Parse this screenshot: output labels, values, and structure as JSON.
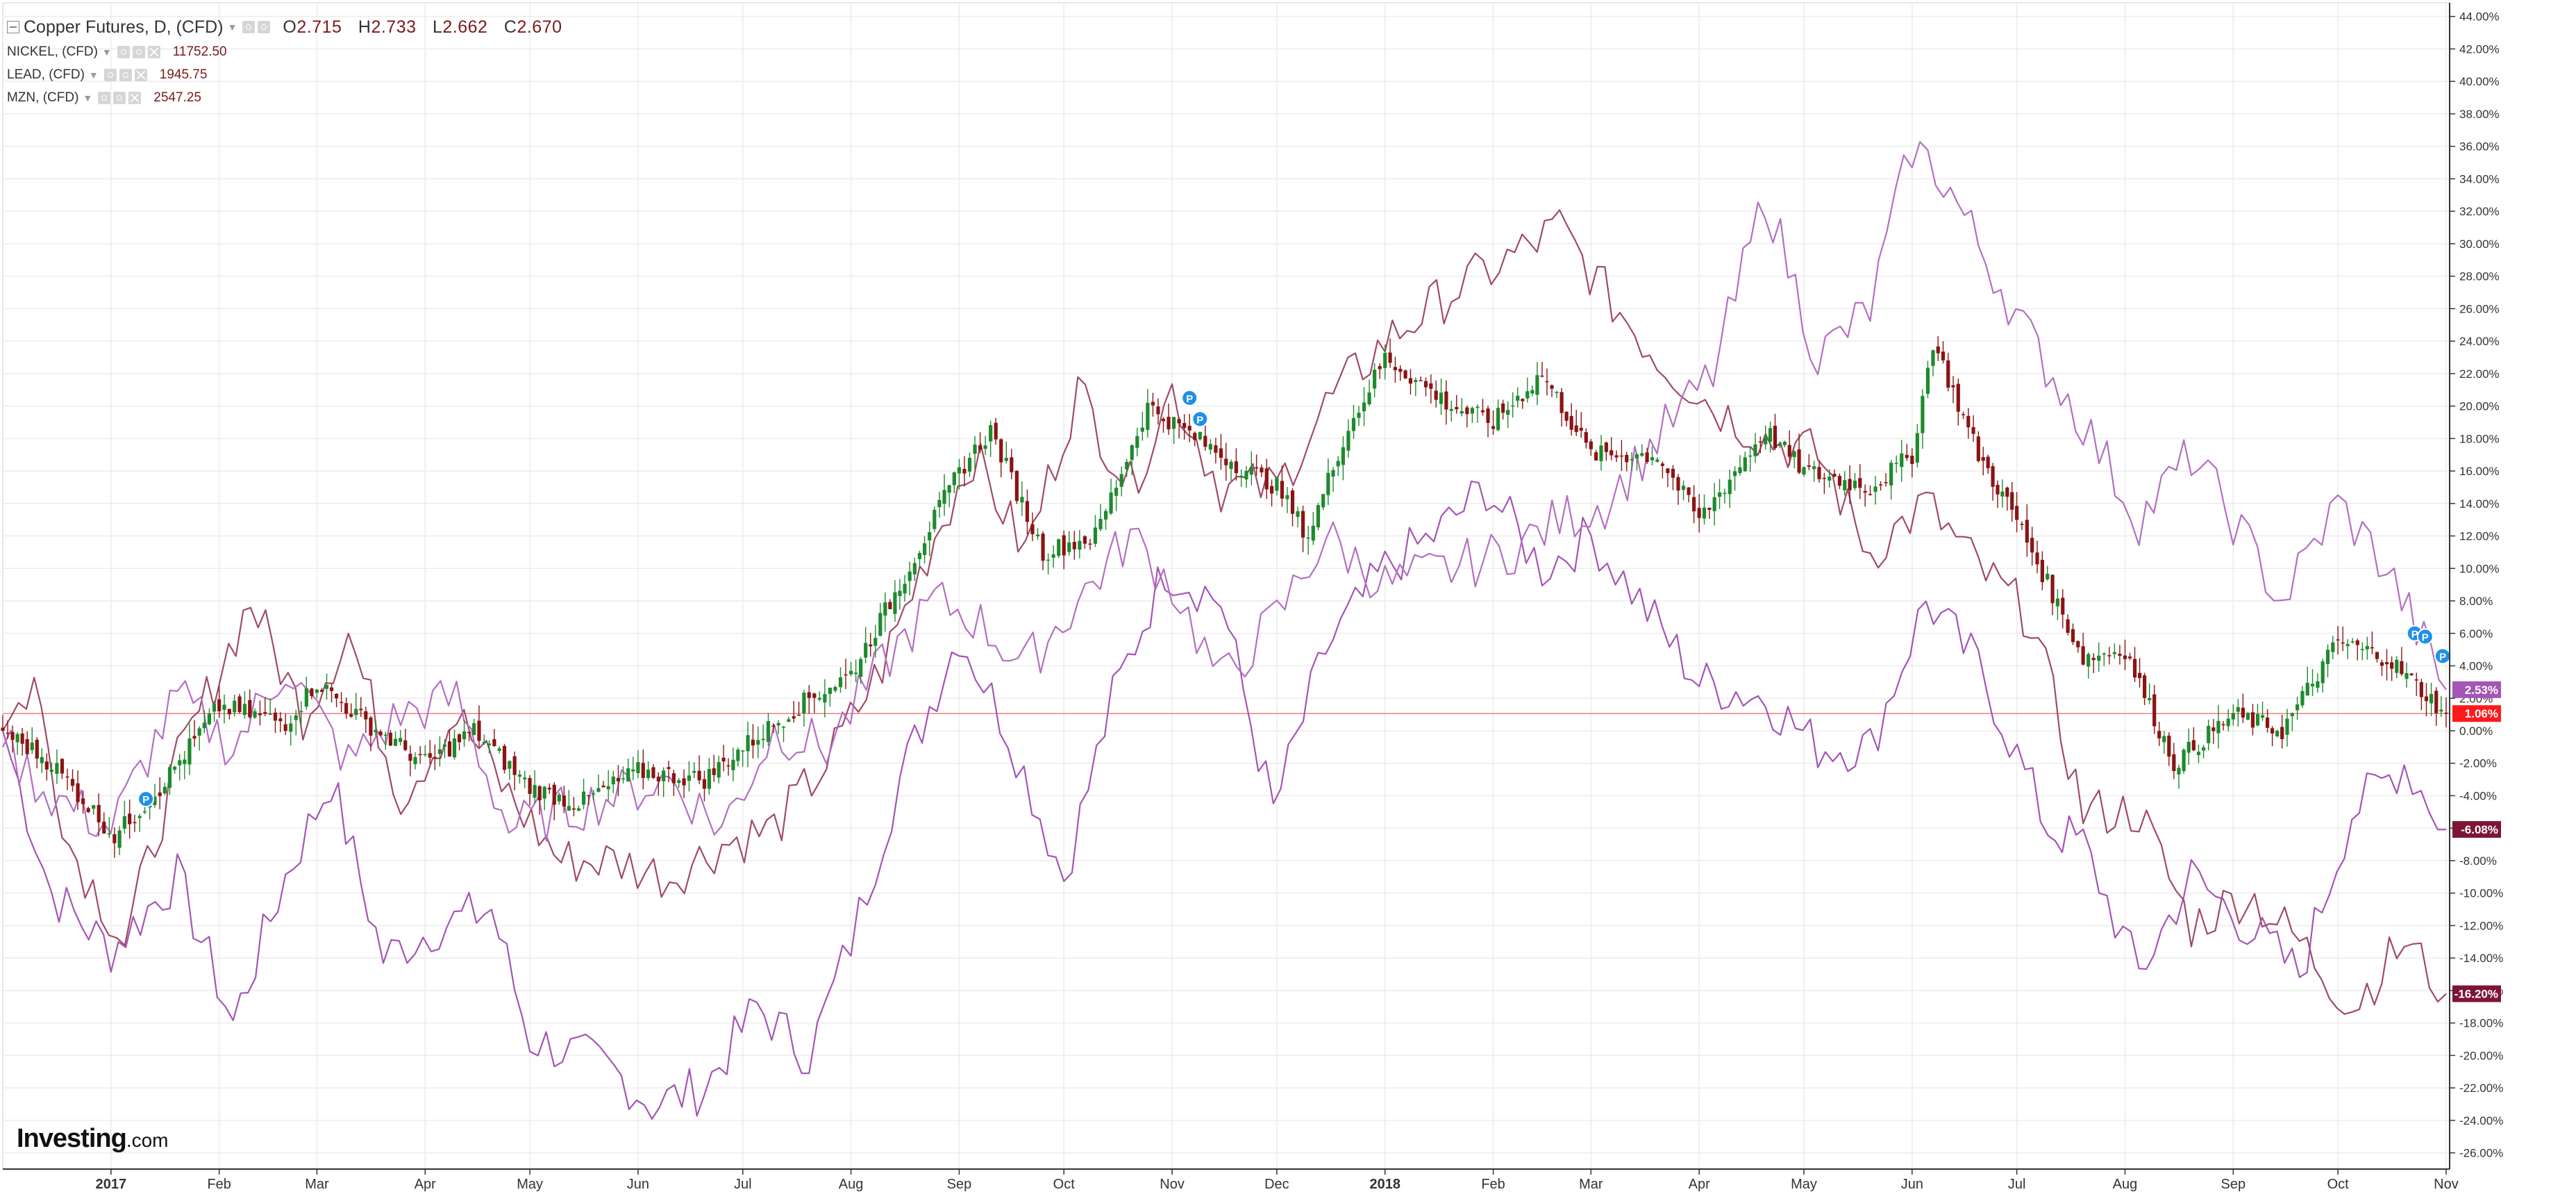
{
  "legend": {
    "main": {
      "symbol": "Copper Futures, D, (CFD)",
      "o_label": "O",
      "o": "2.715",
      "h_label": "H",
      "h": "2.733",
      "l_label": "L",
      "l": "2.662",
      "c_label": "C",
      "c": "2.670"
    },
    "overlays": [
      {
        "symbol": "NICKEL, (CFD)",
        "value": "11752.50"
      },
      {
        "symbol": "LEAD, (CFD)",
        "value": "1945.75"
      },
      {
        "symbol": "MZN, (CFD)",
        "value": "2547.25"
      }
    ]
  },
  "logo": {
    "name": "Investing",
    "suffix": ".com"
  },
  "colors": {
    "up": "#1e8a2e",
    "down": "#8a1414",
    "nickel": "#a455b5",
    "lead": "#a04a67",
    "mzn": "#b36fc2",
    "zero_line": "#f08080",
    "grid": "#ececec",
    "axis": "#333333"
  },
  "chart_data": {
    "type": "line",
    "title": "Copper Futures, D, (CFD)",
    "y_unit": "percent change",
    "ylim": [
      -27,
      44.5
    ],
    "yticks": [
      44,
      42,
      40,
      38,
      36,
      34,
      32,
      30,
      28,
      26,
      24,
      22,
      20,
      18,
      16,
      14,
      12,
      10,
      8,
      6,
      4,
      2,
      0,
      -2,
      -4,
      -6,
      -8,
      -10,
      -12,
      -14,
      -16,
      -18,
      -20,
      -22,
      -24,
      -26
    ],
    "x_start": "2016-12-01",
    "x_end": "2018-11-02",
    "x_ticks": [
      {
        "date": "2017-01-01",
        "label": "2017"
      },
      {
        "date": "2017-02-01",
        "label": "Feb"
      },
      {
        "date": "2017-03-01",
        "label": "Mar"
      },
      {
        "date": "2017-04-01",
        "label": "Apr"
      },
      {
        "date": "2017-05-01",
        "label": "May"
      },
      {
        "date": "2017-06-01",
        "label": "Jun"
      },
      {
        "date": "2017-07-01",
        "label": "Jul"
      },
      {
        "date": "2017-08-01",
        "label": "Aug"
      },
      {
        "date": "2017-09-01",
        "label": "Sep"
      },
      {
        "date": "2017-10-01",
        "label": "Oct"
      },
      {
        "date": "2017-11-01",
        "label": "Nov"
      },
      {
        "date": "2017-12-01",
        "label": "Dec"
      },
      {
        "date": "2018-01-01",
        "label": "2018"
      },
      {
        "date": "2018-02-01",
        "label": "Feb"
      },
      {
        "date": "2018-03-01",
        "label": "Mar"
      },
      {
        "date": "2018-04-01",
        "label": "Apr"
      },
      {
        "date": "2018-05-01",
        "label": "May"
      },
      {
        "date": "2018-06-01",
        "label": "Jun"
      },
      {
        "date": "2018-07-01",
        "label": "Jul"
      },
      {
        "date": "2018-08-01",
        "label": "Aug"
      },
      {
        "date": "2018-09-01",
        "label": "Sep"
      },
      {
        "date": "2018-10-01",
        "label": "Oct"
      },
      {
        "date": "2018-11-01",
        "label": "Nov"
      }
    ],
    "zero_reference": 1.06,
    "last_value_badges": [
      {
        "text": "2.53%",
        "value": 2.53,
        "color": "#a455b5"
      },
      {
        "text": "1.06%",
        "value": 1.06,
        "color": "#ff1a1a"
      },
      {
        "text": "-6.08%",
        "value": -6.08,
        "color": "#7d1535"
      },
      {
        "text": "-16.20%",
        "value": -16.2,
        "color": "#7d1535"
      }
    ],
    "event_markers": [
      {
        "date": "2017-01-11",
        "value": -4.2,
        "label": "P"
      },
      {
        "date": "2017-11-06",
        "value": 20.5,
        "label": "P"
      },
      {
        "date": "2017-11-09",
        "value": 19.2,
        "label": "P"
      },
      {
        "date": "2018-10-23",
        "value": 6.0,
        "label": "P"
      },
      {
        "date": "2018-10-26",
        "value": 5.8,
        "label": "P"
      },
      {
        "date": "2018-10-31",
        "value": 4.6,
        "label": "P"
      }
    ],
    "candles": [
      {
        "x": "2016-12-01",
        "v": 0.0
      },
      {
        "x": "2016-12-15",
        "v": -2.0
      },
      {
        "x": "2017-01-02",
        "v": -6.5
      },
      {
        "x": "2017-01-15",
        "v": -3.5
      },
      {
        "x": "2017-02-01",
        "v": 1.5
      },
      {
        "x": "2017-02-20",
        "v": 0.5
      },
      {
        "x": "2017-03-01",
        "v": 3.0
      },
      {
        "x": "2017-03-15",
        "v": 0.5
      },
      {
        "x": "2017-04-01",
        "v": -2.0
      },
      {
        "x": "2017-04-15",
        "v": 0.0
      },
      {
        "x": "2017-05-01",
        "v": -3.5
      },
      {
        "x": "2017-05-15",
        "v": -4.5
      },
      {
        "x": "2017-06-01",
        "v": -2.5
      },
      {
        "x": "2017-06-20",
        "v": -3.0
      },
      {
        "x": "2017-07-01",
        "v": -1.0
      },
      {
        "x": "2017-07-20",
        "v": 2.0
      },
      {
        "x": "2017-08-01",
        "v": 3.5
      },
      {
        "x": "2017-08-15",
        "v": 9.0
      },
      {
        "x": "2017-09-01",
        "v": 16.0
      },
      {
        "x": "2017-09-10",
        "v": 18.5
      },
      {
        "x": "2017-09-25",
        "v": 11.0
      },
      {
        "x": "2017-10-10",
        "v": 12.0
      },
      {
        "x": "2017-10-25",
        "v": 20.0
      },
      {
        "x": "2017-11-15",
        "v": 17.0
      },
      {
        "x": "2017-12-01",
        "v": 15.0
      },
      {
        "x": "2017-12-10",
        "v": 12.0
      },
      {
        "x": "2017-12-20",
        "v": 18.0
      },
      {
        "x": "2018-01-01",
        "v": 23.0
      },
      {
        "x": "2018-01-20",
        "v": 20.0
      },
      {
        "x": "2018-02-01",
        "v": 19.0
      },
      {
        "x": "2018-02-15",
        "v": 22.0
      },
      {
        "x": "2018-03-01",
        "v": 17.0
      },
      {
        "x": "2018-03-20",
        "v": 17.0
      },
      {
        "x": "2018-04-01",
        "v": 13.0
      },
      {
        "x": "2018-04-20",
        "v": 18.5
      },
      {
        "x": "2018-05-01",
        "v": 16.0
      },
      {
        "x": "2018-05-20",
        "v": 15.0
      },
      {
        "x": "2018-06-01",
        "v": 17.0
      },
      {
        "x": "2018-06-07",
        "v": 24.0
      },
      {
        "x": "2018-06-20",
        "v": 17.0
      },
      {
        "x": "2018-07-01",
        "v": 13.0
      },
      {
        "x": "2018-07-20",
        "v": 4.5
      },
      {
        "x": "2018-08-01",
        "v": 5.0
      },
      {
        "x": "2018-08-15",
        "v": -2.0
      },
      {
        "x": "2018-09-01",
        "v": 1.0
      },
      {
        "x": "2018-09-15",
        "v": 0.0
      },
      {
        "x": "2018-10-01",
        "v": 5.5
      },
      {
        "x": "2018-10-15",
        "v": 4.5
      },
      {
        "x": "2018-11-01",
        "v": 1.06
      }
    ],
    "series": [
      {
        "name": "NICKEL, (CFD)",
        "color": "#a455b5",
        "points": [
          {
            "x": "2016-12-01",
            "y": 0
          },
          {
            "x": "2016-12-15",
            "y": -10
          },
          {
            "x": "2017-01-01",
            "y": -13.5
          },
          {
            "x": "2017-01-20",
            "y": -9
          },
          {
            "x": "2017-02-05",
            "y": -18
          },
          {
            "x": "2017-02-20",
            "y": -9
          },
          {
            "x": "2017-03-05",
            "y": -3
          },
          {
            "x": "2017-03-20",
            "y": -14
          },
          {
            "x": "2017-04-05",
            "y": -12
          },
          {
            "x": "2017-04-20",
            "y": -11
          },
          {
            "x": "2017-05-01",
            "y": -19
          },
          {
            "x": "2017-05-15",
            "y": -20
          },
          {
            "x": "2017-05-25",
            "y": -21
          },
          {
            "x": "2017-06-05",
            "y": -23
          },
          {
            "x": "2017-06-20",
            "y": -22
          },
          {
            "x": "2017-07-05",
            "y": -17
          },
          {
            "x": "2017-07-20",
            "y": -20
          },
          {
            "x": "2017-08-01",
            "y": -13
          },
          {
            "x": "2017-08-15",
            "y": -3
          },
          {
            "x": "2017-09-01",
            "y": 6
          },
          {
            "x": "2017-09-15",
            "y": 0
          },
          {
            "x": "2017-10-01",
            "y": -9
          },
          {
            "x": "2017-10-15",
            "y": 2
          },
          {
            "x": "2017-10-30",
            "y": 10
          },
          {
            "x": "2017-11-15",
            "y": 8
          },
          {
            "x": "2017-11-30",
            "y": -5
          },
          {
            "x": "2017-12-15",
            "y": 5
          },
          {
            "x": "2018-01-01",
            "y": 10
          },
          {
            "x": "2018-01-15",
            "y": 12
          },
          {
            "x": "2018-01-30",
            "y": 15
          },
          {
            "x": "2018-02-15",
            "y": 10
          },
          {
            "x": "2018-03-01",
            "y": 12
          },
          {
            "x": "2018-03-15",
            "y": 8
          },
          {
            "x": "2018-04-01",
            "y": 3
          },
          {
            "x": "2018-04-20",
            "y": 2
          },
          {
            "x": "2018-05-05",
            "y": -1
          },
          {
            "x": "2018-05-20",
            "y": -1
          },
          {
            "x": "2018-06-05",
            "y": 8
          },
          {
            "x": "2018-06-20",
            "y": 4
          },
          {
            "x": "2018-07-10",
            "y": -6
          },
          {
            "x": "2018-07-20",
            "y": -7
          },
          {
            "x": "2018-08-05",
            "y": -15
          },
          {
            "x": "2018-08-20",
            "y": -9
          },
          {
            "x": "2018-09-05",
            "y": -12
          },
          {
            "x": "2018-09-20",
            "y": -15
          },
          {
            "x": "2018-10-05",
            "y": -5
          },
          {
            "x": "2018-10-20",
            "y": -2
          },
          {
            "x": "2018-11-01",
            "y": -6.08
          }
        ]
      },
      {
        "name": "LEAD, (CFD)",
        "color": "#a04a67",
        "points": [
          {
            "x": "2016-12-01",
            "y": 0
          },
          {
            "x": "2016-12-10",
            "y": 3
          },
          {
            "x": "2016-12-20",
            "y": -7
          },
          {
            "x": "2017-01-05",
            "y": -13
          },
          {
            "x": "2017-01-20",
            "y": -2
          },
          {
            "x": "2017-02-10",
            "y": 8
          },
          {
            "x": "2017-02-25",
            "y": 1
          },
          {
            "x": "2017-03-10",
            "y": 6
          },
          {
            "x": "2017-03-25",
            "y": -4
          },
          {
            "x": "2017-04-10",
            "y": 1
          },
          {
            "x": "2017-04-25",
            "y": -4
          },
          {
            "x": "2017-05-10",
            "y": -8
          },
          {
            "x": "2017-05-25",
            "y": -8
          },
          {
            "x": "2017-06-10",
            "y": -9
          },
          {
            "x": "2017-06-25",
            "y": -7
          },
          {
            "x": "2017-07-10",
            "y": -6
          },
          {
            "x": "2017-07-25",
            "y": -2
          },
          {
            "x": "2017-08-10",
            "y": 4
          },
          {
            "x": "2017-08-25",
            "y": 12
          },
          {
            "x": "2017-09-05",
            "y": 17
          },
          {
            "x": "2017-09-20",
            "y": 11
          },
          {
            "x": "2017-10-05",
            "y": 21
          },
          {
            "x": "2017-10-20",
            "y": 15
          },
          {
            "x": "2017-11-01",
            "y": 21
          },
          {
            "x": "2017-11-15",
            "y": 15
          },
          {
            "x": "2017-12-01",
            "y": 15
          },
          {
            "x": "2017-12-15",
            "y": 20
          },
          {
            "x": "2018-01-01",
            "y": 24
          },
          {
            "x": "2018-01-20",
            "y": 27
          },
          {
            "x": "2018-02-05",
            "y": 29
          },
          {
            "x": "2018-02-20",
            "y": 31
          },
          {
            "x": "2018-03-05",
            "y": 27
          },
          {
            "x": "2018-03-20",
            "y": 23
          },
          {
            "x": "2018-04-05",
            "y": 20
          },
          {
            "x": "2018-04-20",
            "y": 18
          },
          {
            "x": "2018-05-05",
            "y": 17
          },
          {
            "x": "2018-05-20",
            "y": 11
          },
          {
            "x": "2018-06-05",
            "y": 14
          },
          {
            "x": "2018-06-20",
            "y": 10
          },
          {
            "x": "2018-07-05",
            "y": 7
          },
          {
            "x": "2018-07-20",
            "y": -5
          },
          {
            "x": "2018-08-05",
            "y": -5
          },
          {
            "x": "2018-08-20",
            "y": -12
          },
          {
            "x": "2018-09-05",
            "y": -10
          },
          {
            "x": "2018-09-20",
            "y": -13
          },
          {
            "x": "2018-10-05",
            "y": -17
          },
          {
            "x": "2018-10-20",
            "y": -13
          },
          {
            "x": "2018-11-01",
            "y": -16.2
          }
        ]
      },
      {
        "name": "MZN, (CFD)",
        "color": "#b36fc2",
        "points": [
          {
            "x": "2016-12-01",
            "y": -1
          },
          {
            "x": "2016-12-15",
            "y": -4
          },
          {
            "x": "2017-01-01",
            "y": -6
          },
          {
            "x": "2017-01-20",
            "y": 2
          },
          {
            "x": "2017-02-05",
            "y": -1
          },
          {
            "x": "2017-02-20",
            "y": 4
          },
          {
            "x": "2017-03-10",
            "y": -2
          },
          {
            "x": "2017-03-25",
            "y": 1
          },
          {
            "x": "2017-04-10",
            "y": 2
          },
          {
            "x": "2017-04-25",
            "y": -6
          },
          {
            "x": "2017-05-10",
            "y": -5
          },
          {
            "x": "2017-05-25",
            "y": -4
          },
          {
            "x": "2017-06-10",
            "y": -3
          },
          {
            "x": "2017-06-25",
            "y": -6
          },
          {
            "x": "2017-07-10",
            "y": 0
          },
          {
            "x": "2017-07-25",
            "y": -1
          },
          {
            "x": "2017-08-10",
            "y": 4
          },
          {
            "x": "2017-08-25",
            "y": 8
          },
          {
            "x": "2017-09-05",
            "y": 7
          },
          {
            "x": "2017-09-20",
            "y": 4
          },
          {
            "x": "2017-10-05",
            "y": 8
          },
          {
            "x": "2017-10-20",
            "y": 12
          },
          {
            "x": "2017-11-01",
            "y": 9
          },
          {
            "x": "2017-11-15",
            "y": 3
          },
          {
            "x": "2017-12-01",
            "y": 7
          },
          {
            "x": "2017-12-15",
            "y": 12
          },
          {
            "x": "2018-01-01",
            "y": 9
          },
          {
            "x": "2018-01-20",
            "y": 10
          },
          {
            "x": "2018-02-05",
            "y": 11
          },
          {
            "x": "2018-02-20",
            "y": 13
          },
          {
            "x": "2018-03-05",
            "y": 14
          },
          {
            "x": "2018-03-20",
            "y": 18
          },
          {
            "x": "2018-04-05",
            "y": 22
          },
          {
            "x": "2018-04-20",
            "y": 33
          },
          {
            "x": "2018-05-05",
            "y": 23
          },
          {
            "x": "2018-05-20",
            "y": 26
          },
          {
            "x": "2018-06-01",
            "y": 36
          },
          {
            "x": "2018-06-10",
            "y": 34
          },
          {
            "x": "2018-06-20",
            "y": 30
          },
          {
            "x": "2018-07-05",
            "y": 24
          },
          {
            "x": "2018-07-20",
            "y": 19
          },
          {
            "x": "2018-08-05",
            "y": 13
          },
          {
            "x": "2018-08-20",
            "y": 17
          },
          {
            "x": "2018-09-01",
            "y": 13
          },
          {
            "x": "2018-09-15",
            "y": 8
          },
          {
            "x": "2018-10-01",
            "y": 14
          },
          {
            "x": "2018-10-15",
            "y": 10
          },
          {
            "x": "2018-11-01",
            "y": 2.53
          }
        ]
      }
    ]
  }
}
